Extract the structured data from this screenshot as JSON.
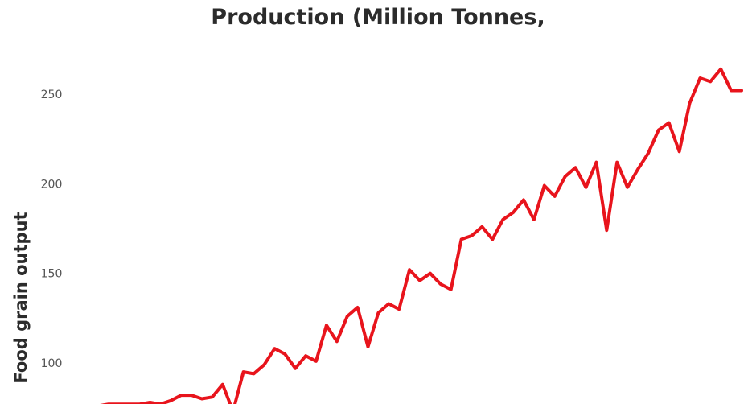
{
  "chart_data": {
    "type": "line",
    "title": "Production (Million Tonnes,",
    "xlabel": "",
    "ylabel": "Food grain output",
    "y_ticks": [
      "250",
      "200",
      "150",
      "100"
    ],
    "y_tick_values": [
      250,
      200,
      150,
      100
    ],
    "ylim": [
      73,
      275
    ],
    "grid": false,
    "line_color": "#e8141c",
    "series": [
      {
        "values": [
          76,
          77,
          77,
          77,
          77,
          78,
          77,
          79,
          82,
          82,
          80,
          81,
          88,
          73,
          95,
          94,
          99,
          108,
          105,
          97,
          104,
          101,
          121,
          112,
          126,
          131,
          109,
          128,
          133,
          130,
          152,
          146,
          150,
          144,
          141,
          169,
          171,
          176,
          169,
          180,
          184,
          191,
          180,
          199,
          193,
          204,
          209,
          198,
          212,
          174,
          212,
          198,
          208,
          217,
          230,
          234,
          218,
          245,
          259,
          257,
          264,
          252,
          252
        ]
      }
    ]
  }
}
